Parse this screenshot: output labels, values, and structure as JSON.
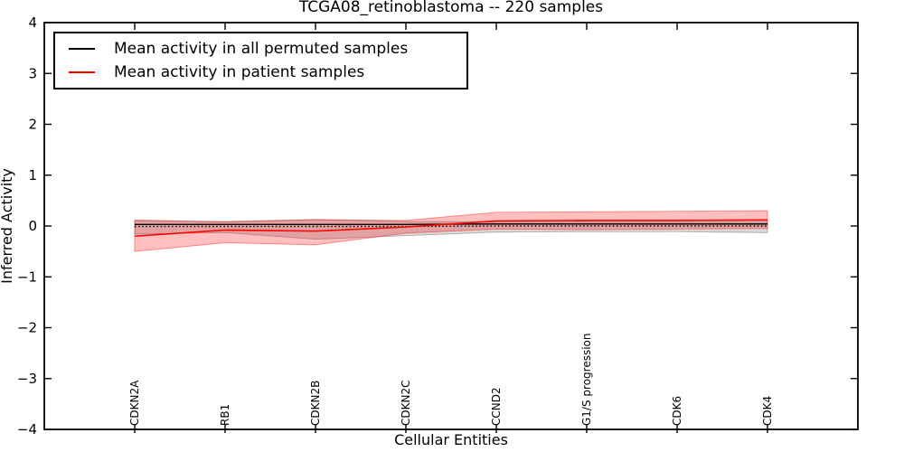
{
  "legend": {
    "position": "upper left",
    "entries": [
      {
        "label": "Mean activity in all permuted samples",
        "color": "#000000"
      },
      {
        "label": "Mean activity in patient samples",
        "color": "#ff0000"
      }
    ]
  },
  "chart_data": {
    "type": "line",
    "title": "TCGA08_retinoblastoma -- 220 samples",
    "xlabel": "Cellular Entities",
    "ylabel": "Inferred Activity",
    "categories": [
      "CDKN2A",
      "RB1",
      "CDKN2B",
      "CDKN2C",
      "CCND2",
      "G1/S progression",
      "CDK6",
      "CDK4"
    ],
    "ylim": [
      -4,
      4
    ],
    "yticks": [
      4,
      3,
      2,
      1,
      0,
      -1,
      -2,
      -3,
      -4
    ],
    "ytick_labels": [
      "4",
      "3",
      "2",
      "1",
      "0",
      "−1",
      "−2",
      "−3",
      "−4"
    ],
    "grid": false,
    "legend_position": "upper left",
    "series": [
      {
        "id": "permuted-mean",
        "name": "Mean activity in all permuted samples",
        "color": "#000000",
        "style": "solid",
        "width": 1.4,
        "values": [
          0.03,
          0.03,
          0.03,
          0.03,
          0.04,
          0.04,
          0.04,
          0.04
        ]
      },
      {
        "id": "zero-reference",
        "name": "zero reference (dotted)",
        "color": "#000000",
        "style": "dotted",
        "width": 1.4,
        "values": [
          -0.01,
          -0.01,
          -0.01,
          -0.01,
          0.0,
          0.0,
          0.0,
          0.0
        ]
      },
      {
        "id": "patient-mean",
        "name": "Mean activity in patient samples",
        "color": "#ff0000",
        "style": "solid",
        "width": 1.6,
        "values": [
          -0.2,
          -0.08,
          -0.1,
          -0.02,
          0.1,
          0.11,
          0.11,
          0.12
        ]
      }
    ],
    "bands": [
      {
        "id": "permuted-activity-range",
        "name": "permuted samples activity range",
        "fill": "rgba(0,0,0,0.15)",
        "edge": "rgba(0,0,0,0.25)",
        "upper": [
          0.1,
          0.09,
          0.13,
          0.09,
          0.08,
          0.08,
          0.08,
          0.09
        ],
        "lower": [
          -0.16,
          -0.13,
          -0.26,
          -0.19,
          -0.12,
          -0.11,
          -0.11,
          -0.13
        ]
      },
      {
        "id": "patient-activity-range",
        "name": "patient samples activity range",
        "fill": "rgba(255,0,0,0.25)",
        "edge": "rgba(255,0,0,0.40)",
        "upper": [
          0.12,
          0.08,
          0.12,
          0.11,
          0.27,
          0.28,
          0.29,
          0.3
        ],
        "lower": [
          -0.5,
          -0.33,
          -0.37,
          -0.14,
          -0.06,
          -0.07,
          -0.06,
          -0.05
        ]
      }
    ]
  }
}
